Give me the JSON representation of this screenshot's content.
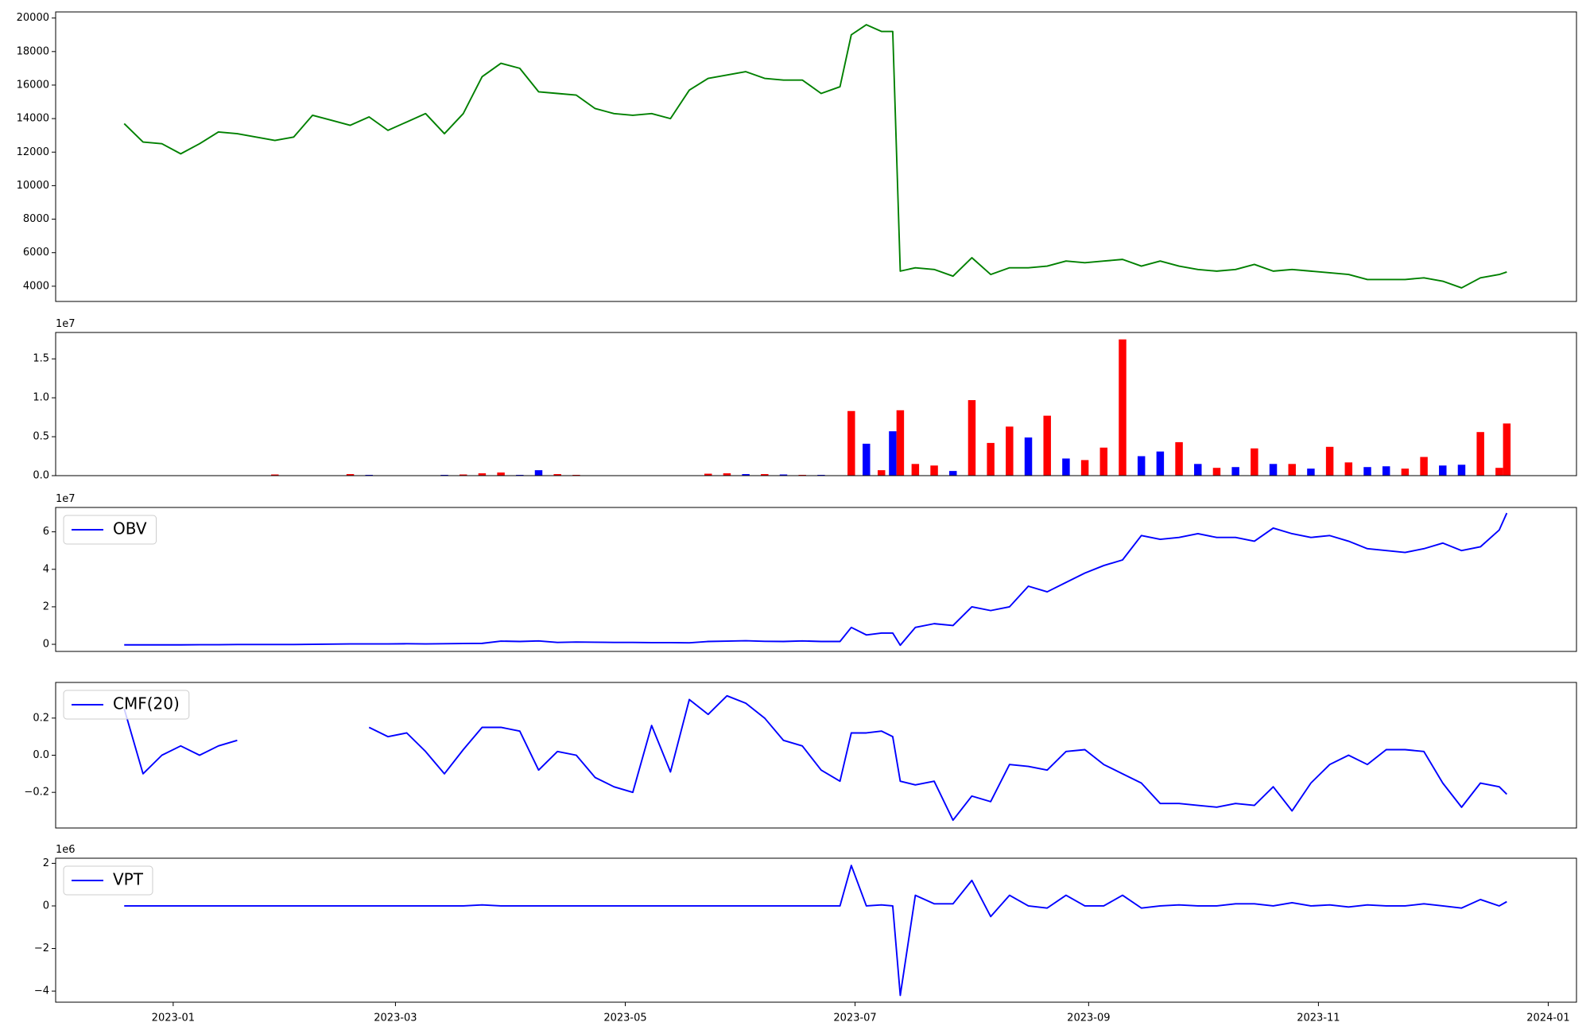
{
  "chart_data": [
    {
      "type": "line",
      "x": [
        19345,
        19350,
        19355,
        19360,
        19365,
        19370,
        19375,
        19380,
        19385,
        19390,
        19395,
        19400,
        19405,
        19410,
        19415,
        19420,
        19425,
        19430,
        19435,
        19440,
        19445,
        19450,
        19455,
        19460,
        19465,
        19470,
        19475,
        19480,
        19485,
        19490,
        19495,
        19500,
        19505,
        19510,
        19515,
        19520,
        19525,
        19530,
        19535,
        19538,
        19542,
        19546,
        19549,
        19551,
        19555,
        19560,
        19565,
        19570,
        19575,
        19580,
        19585,
        19590,
        19595,
        19600,
        19605,
        19610,
        19615,
        19620,
        19625,
        19630,
        19635,
        19640,
        19645,
        19650,
        19655,
        19660,
        19665,
        19670,
        19675,
        19680,
        19685,
        19690,
        19695,
        19700,
        19705,
        19710,
        19712
      ],
      "series": [
        {
          "color": "green",
          "values": [
            13700,
            12600,
            12500,
            11900,
            12500,
            13200,
            13100,
            12900,
            12700,
            12900,
            14200,
            13900,
            13600,
            14100,
            13300,
            13800,
            14300,
            13100,
            14300,
            16500,
            17300,
            17000,
            15600,
            15500,
            15400,
            14600,
            14300,
            14200,
            14300,
            14000,
            15700,
            16400,
            16600,
            16800,
            16400,
            16300,
            16300,
            15500,
            15900,
            19000,
            19600,
            19200,
            19200,
            4900,
            5100,
            5000,
            4600,
            5700,
            4700,
            5100,
            5100,
            5200,
            5500,
            5400,
            5500,
            5600,
            5200,
            5500,
            5200,
            5000,
            4900,
            5000,
            5300,
            4900,
            5000,
            4900,
            4800,
            4700,
            4400,
            4400,
            4400,
            4500,
            4300,
            3900,
            4500,
            4700,
            4850
          ]
        }
      ],
      "xlim": [
        19326.8,
        19730.5
      ],
      "ylim": [
        3091,
        20364
      ],
      "yticks": [
        4000,
        6000,
        8000,
        10000,
        12000,
        14000,
        16000,
        18000,
        20000
      ]
    },
    {
      "type": "bar",
      "x": [
        19345,
        19350,
        19355,
        19360,
        19365,
        19370,
        19375,
        19380,
        19385,
        19390,
        19395,
        19400,
        19405,
        19410,
        19415,
        19420,
        19425,
        19430,
        19435,
        19440,
        19445,
        19450,
        19455,
        19460,
        19465,
        19470,
        19475,
        19480,
        19485,
        19490,
        19495,
        19500,
        19505,
        19510,
        19515,
        19520,
        19525,
        19530,
        19535,
        19538,
        19542,
        19546,
        19549,
        19551,
        19555,
        19560,
        19565,
        19570,
        19575,
        19580,
        19585,
        19590,
        19595,
        19600,
        19605,
        19610,
        19615,
        19620,
        19625,
        19630,
        19635,
        19640,
        19645,
        19650,
        19655,
        19660,
        19665,
        19670,
        19675,
        19680,
        19685,
        19690,
        19695,
        19700,
        19705,
        19710,
        19712
      ],
      "values": [
        0,
        0,
        0,
        50000,
        0,
        0,
        0,
        0,
        150000,
        0,
        0,
        0,
        200000,
        100000,
        0,
        0,
        50000,
        100000,
        150000,
        300000,
        400000,
        100000,
        700000,
        200000,
        100000,
        0,
        0,
        0,
        0,
        0,
        0,
        250000,
        300000,
        200000,
        200000,
        150000,
        100000,
        100000,
        50000,
        8300000,
        4100000,
        700000,
        5700000,
        8400000,
        1500000,
        1300000,
        600000,
        9700000,
        4200000,
        6300000,
        4900000,
        7700000,
        2200000,
        2000000,
        3600000,
        17500000,
        2500000,
        3100000,
        4300000,
        1500000,
        1000000,
        1100000,
        3500000,
        1500000,
        1500000,
        900000,
        3700000,
        1700000,
        1100000,
        1200000,
        900000,
        2400000,
        1300000,
        1400000,
        5600000,
        1000000,
        6700000
      ],
      "colors": [
        "red",
        "blue",
        "red",
        "red",
        "blue",
        "red",
        "red",
        "blue",
        "red",
        "blue",
        "red",
        "red",
        "red",
        "blue",
        "red",
        "blue",
        "red",
        "blue",
        "red",
        "red",
        "red",
        "blue",
        "blue",
        "red",
        "red",
        "blue",
        "red",
        "red",
        "blue",
        "red",
        "blue",
        "red",
        "red",
        "blue",
        "red",
        "blue",
        "red",
        "blue",
        "red",
        "red",
        "blue",
        "red",
        "blue",
        "red",
        "red",
        "red",
        "blue",
        "red",
        "red",
        "red",
        "blue",
        "red",
        "blue",
        "red",
        "red",
        "red",
        "blue",
        "blue",
        "red",
        "blue",
        "red",
        "blue",
        "red",
        "blue",
        "red",
        "blue",
        "red",
        "red",
        "blue",
        "blue",
        "red",
        "red",
        "blue",
        "blue",
        "red",
        "red",
        "red"
      ],
      "xlim": [
        19326.8,
        19730.5
      ],
      "ylim": [
        0,
        18390000
      ],
      "yticks": [
        {
          "value": 0,
          "label": "0.0"
        },
        {
          "value": 5000000,
          "label": "0.5"
        },
        {
          "value": 10000000,
          "label": "1.0"
        },
        {
          "value": 15000000,
          "label": "1.5"
        }
      ],
      "y_offset_label": "1e7"
    },
    {
      "type": "line",
      "x": [
        19345,
        19350,
        19355,
        19360,
        19365,
        19370,
        19375,
        19380,
        19385,
        19390,
        19395,
        19400,
        19405,
        19410,
        19415,
        19420,
        19425,
        19430,
        19435,
        19440,
        19445,
        19450,
        19455,
        19460,
        19465,
        19470,
        19475,
        19480,
        19485,
        19490,
        19495,
        19500,
        19505,
        19510,
        19515,
        19520,
        19525,
        19530,
        19535,
        19538,
        19542,
        19546,
        19549,
        19551,
        19555,
        19560,
        19565,
        19570,
        19575,
        19580,
        19585,
        19590,
        19595,
        19600,
        19605,
        19610,
        19615,
        19620,
        19625,
        19630,
        19635,
        19640,
        19645,
        19650,
        19655,
        19660,
        19665,
        19670,
        19675,
        19680,
        19685,
        19690,
        19695,
        19700,
        19705,
        19710,
        19712
      ],
      "series": [
        {
          "name": "OBV",
          "color": "blue",
          "values": [
            -300000,
            -300000,
            -300000,
            -300000,
            -200000,
            -200000,
            -100000,
            -100000,
            -100000,
            -100000,
            0,
            100000,
            200000,
            200000,
            200000,
            300000,
            200000,
            300000,
            400000,
            500000,
            1700000,
            1500000,
            1800000,
            1000000,
            1200000,
            1100000,
            1000000,
            1000000,
            900000,
            900000,
            800000,
            1500000,
            1700000,
            1900000,
            1600000,
            1500000,
            1800000,
            1500000,
            1500000,
            9000000,
            5000000,
            6000000,
            6000000,
            -500000,
            9000000,
            11000000,
            10000000,
            20000000,
            18000000,
            20000000,
            31000000,
            28000000,
            33000000,
            38000000,
            42000000,
            45000000,
            58000000,
            56000000,
            57000000,
            59000000,
            57000000,
            57000000,
            55000000,
            62000000,
            59000000,
            57000000,
            58000000,
            55000000,
            51000000,
            50000000,
            49000000,
            51000000,
            54000000,
            50000000,
            52000000,
            61000000,
            70000000
          ]
        }
      ],
      "xlim": [
        19326.8,
        19730.5
      ],
      "ylim": [
        -3800000,
        73000000
      ],
      "yticks": [
        {
          "value": 0,
          "label": "0"
        },
        {
          "value": 20000000,
          "label": "2"
        },
        {
          "value": 40000000,
          "label": "4"
        },
        {
          "value": 60000000,
          "label": "6"
        }
      ],
      "y_offset_label": "1e7",
      "legend": "upper left"
    },
    {
      "type": "line",
      "x": [
        19345,
        19350,
        19355,
        19360,
        19365,
        19370,
        19375,
        19380,
        19385,
        19390,
        19395,
        19400,
        19405,
        19410,
        19415,
        19420,
        19425,
        19430,
        19435,
        19440,
        19445,
        19450,
        19455,
        19460,
        19465,
        19470,
        19475,
        19480,
        19485,
        19490,
        19495,
        19500,
        19505,
        19510,
        19515,
        19520,
        19525,
        19530,
        19535,
        19538,
        19542,
        19546,
        19549,
        19551,
        19555,
        19560,
        19565,
        19570,
        19575,
        19580,
        19585,
        19590,
        19595,
        19600,
        19605,
        19610,
        19615,
        19620,
        19625,
        19630,
        19635,
        19640,
        19645,
        19650,
        19655,
        19660,
        19665,
        19670,
        19675,
        19680,
        19685,
        19690,
        19695,
        19700,
        19705,
        19710,
        19712
      ],
      "series": [
        {
          "name": "CMF(20)",
          "color": "blue",
          "values": [
            0.25,
            -0.1,
            0,
            0.05,
            0,
            0.05,
            0.08,
            null,
            null,
            null,
            null,
            null,
            null,
            0.15,
            0.1,
            0.12,
            0.02,
            -0.1,
            0.03,
            0.15,
            0.15,
            0.13,
            -0.08,
            0.02,
            0,
            -0.12,
            -0.17,
            -0.2,
            0.16,
            -0.09,
            0.3,
            0.22,
            0.32,
            0.28,
            0.2,
            0.08,
            0.05,
            -0.08,
            -0.14,
            0.12,
            0.12,
            0.13,
            0.1,
            -0.14,
            -0.16,
            -0.14,
            -0.35,
            -0.22,
            -0.25,
            -0.05,
            -0.06,
            -0.08,
            0.02,
            0.03,
            -0.05,
            -0.1,
            -0.15,
            -0.26,
            -0.26,
            -0.27,
            -0.28,
            -0.26,
            -0.27,
            -0.17,
            -0.3,
            -0.15,
            -0.05,
            0,
            -0.05,
            0.03,
            0.03,
            0.02,
            -0.15,
            -0.28,
            -0.15,
            -0.17,
            -0.21
          ]
        }
      ],
      "xlim": [
        19326.8,
        19730.5
      ],
      "ylim": [
        -0.392,
        0.392
      ],
      "yticks": [
        {
          "value": -0.2,
          "label": "−0.2"
        },
        {
          "value": 0,
          "label": "0.0"
        },
        {
          "value": 0.2,
          "label": "0.2"
        }
      ],
      "legend": "upper left"
    },
    {
      "type": "line",
      "x": [
        19345,
        19350,
        19355,
        19360,
        19365,
        19370,
        19375,
        19380,
        19385,
        19390,
        19395,
        19400,
        19405,
        19410,
        19415,
        19420,
        19425,
        19430,
        19435,
        19440,
        19445,
        19450,
        19455,
        19460,
        19465,
        19470,
        19475,
        19480,
        19485,
        19490,
        19495,
        19500,
        19505,
        19510,
        19515,
        19520,
        19525,
        19530,
        19535,
        19538,
        19542,
        19546,
        19549,
        19551,
        19555,
        19560,
        19565,
        19570,
        19575,
        19580,
        19585,
        19590,
        19595,
        19600,
        19605,
        19610,
        19615,
        19620,
        19625,
        19630,
        19635,
        19640,
        19645,
        19650,
        19655,
        19660,
        19665,
        19670,
        19675,
        19680,
        19685,
        19690,
        19695,
        19700,
        19705,
        19710,
        19712
      ],
      "series": [
        {
          "name": "VPT",
          "color": "blue",
          "values": [
            0,
            0,
            0,
            0,
            0,
            0,
            0,
            0,
            0,
            0,
            0,
            0,
            0,
            0,
            0,
            0,
            0,
            0,
            0,
            50000,
            0,
            0,
            0,
            0,
            0,
            0,
            0,
            0,
            0,
            0,
            0,
            0,
            0,
            0,
            0,
            0,
            0,
            0,
            0,
            1900000,
            0,
            50000,
            0,
            -4200000,
            500000,
            100000,
            100000,
            1200000,
            -500000,
            500000,
            0,
            -100000,
            500000,
            0,
            0,
            500000,
            -100000,
            0,
            50000,
            0,
            0,
            100000,
            100000,
            0,
            150000,
            0,
            50000,
            -50000,
            50000,
            0,
            0,
            100000,
            0,
            -100000,
            300000,
            0,
            200000
          ]
        }
      ],
      "xlim": [
        19326.8,
        19730.5
      ],
      "ylim": [
        -4520000,
        2240000
      ],
      "yticks": [
        {
          "value": -4000000,
          "label": "−4"
        },
        {
          "value": -2000000,
          "label": "−2"
        },
        {
          "value": 0,
          "label": "0"
        },
        {
          "value": 2000000,
          "label": "2"
        }
      ],
      "xticks": [
        {
          "value": 19358,
          "label": "2023-01"
        },
        {
          "value": 19417,
          "label": "2023-03"
        },
        {
          "value": 19478,
          "label": "2023-05"
        },
        {
          "value": 19539,
          "label": "2023-07"
        },
        {
          "value": 19601,
          "label": "2023-09"
        },
        {
          "value": 19662,
          "label": "2023-11"
        },
        {
          "value": 19723,
          "label": "2024-01"
        }
      ],
      "y_offset_label": "1e6",
      "legend": "upper left"
    }
  ]
}
